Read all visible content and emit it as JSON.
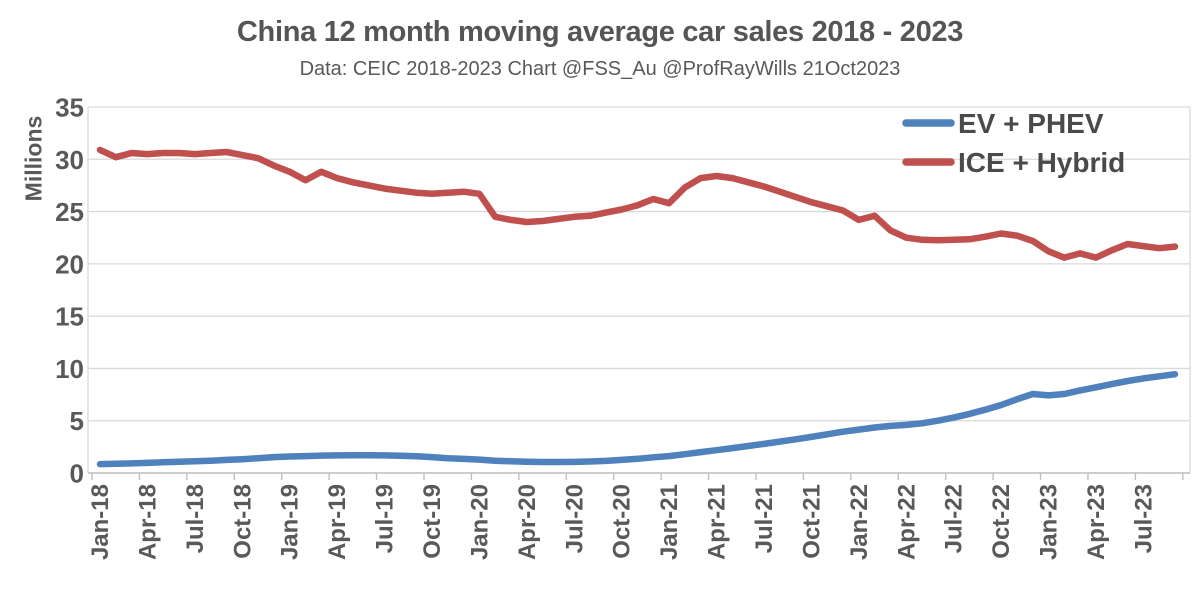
{
  "chart_data": {
    "type": "line",
    "title": "China 12 month moving average car sales 2018 - 2023",
    "subtitle": "Data: CEIC 2018-2023  Chart @FSS_Au @ProfRayWills 21Oct2023",
    "ylabel": "Millions",
    "xlabel": "",
    "ylim": [
      0,
      35
    ],
    "y_tick_step": 5,
    "y_tick_labels": [
      "0",
      "5",
      "10",
      "15",
      "20",
      "25",
      "30",
      "35"
    ],
    "grid": "horizontal",
    "legend_position": "top-right",
    "x": [
      "Jan-18",
      "Feb-18",
      "Mar-18",
      "Apr-18",
      "May-18",
      "Jun-18",
      "Jul-18",
      "Aug-18",
      "Sep-18",
      "Oct-18",
      "Nov-18",
      "Dec-18",
      "Jan-19",
      "Feb-19",
      "Mar-19",
      "Apr-19",
      "May-19",
      "Jun-19",
      "Jul-19",
      "Aug-19",
      "Sep-19",
      "Oct-19",
      "Nov-19",
      "Dec-19",
      "Jan-20",
      "Feb-20",
      "Mar-20",
      "Apr-20",
      "May-20",
      "Jun-20",
      "Jul-20",
      "Aug-20",
      "Sep-20",
      "Oct-20",
      "Nov-20",
      "Dec-20",
      "Jan-21",
      "Feb-21",
      "Mar-21",
      "Apr-21",
      "May-21",
      "Jun-21",
      "Jul-21",
      "Aug-21",
      "Sep-21",
      "Oct-21",
      "Nov-21",
      "Dec-21",
      "Jan-22",
      "Feb-22",
      "Mar-22",
      "Apr-22",
      "May-22",
      "Jun-22",
      "Jul-22",
      "Aug-22",
      "Sep-22",
      "Oct-22",
      "Nov-22",
      "Dec-22",
      "Jan-23",
      "Feb-23",
      "Mar-23",
      "Apr-23",
      "May-23",
      "Jun-23",
      "Jul-23",
      "Aug-23",
      "Sep-23"
    ],
    "x_tick_labels": [
      "Jan-18",
      "Apr-18",
      "Jul-18",
      "Oct-18",
      "Jan-19",
      "Apr-19",
      "Jul-19",
      "Oct-19",
      "Jan-20",
      "Apr-20",
      "Jul-20",
      "Oct-20",
      "Jan-21",
      "Apr-21",
      "Jul-21",
      "Oct-21",
      "Jan-22",
      "Apr-22",
      "Jul-22",
      "Oct-22",
      "Jan-23",
      "Apr-23",
      "Jul-23"
    ],
    "series": [
      {
        "name": "EV + PHEV",
        "color": "#4F81BD",
        "values": [
          0.85,
          0.88,
          0.92,
          0.97,
          1.02,
          1.08,
          1.13,
          1.18,
          1.25,
          1.32,
          1.42,
          1.52,
          1.58,
          1.62,
          1.66,
          1.68,
          1.7,
          1.7,
          1.68,
          1.65,
          1.6,
          1.52,
          1.42,
          1.35,
          1.28,
          1.18,
          1.12,
          1.08,
          1.05,
          1.05,
          1.06,
          1.1,
          1.16,
          1.25,
          1.36,
          1.5,
          1.62,
          1.8,
          2.0,
          2.18,
          2.38,
          2.58,
          2.78,
          3.0,
          3.22,
          3.45,
          3.7,
          3.95,
          4.15,
          4.35,
          4.5,
          4.6,
          4.75,
          5.0,
          5.3,
          5.65,
          6.05,
          6.5,
          7.05,
          7.55,
          7.42,
          7.55,
          7.9,
          8.2,
          8.5,
          8.8,
          9.05,
          9.25,
          9.45
        ]
      },
      {
        "name": "ICE + Hybrid",
        "color": "#C0504D",
        "values": [
          30.9,
          30.2,
          30.6,
          30.5,
          30.6,
          30.6,
          30.5,
          30.6,
          30.7,
          30.4,
          30.1,
          29.4,
          28.8,
          28.0,
          28.8,
          28.2,
          27.8,
          27.5,
          27.2,
          27.0,
          26.8,
          26.7,
          26.8,
          26.9,
          26.7,
          24.5,
          24.2,
          24.0,
          24.1,
          24.3,
          24.5,
          24.6,
          24.9,
          25.2,
          25.6,
          26.2,
          25.8,
          27.3,
          28.2,
          28.4,
          28.2,
          27.8,
          27.4,
          26.9,
          26.4,
          25.9,
          25.5,
          25.1,
          24.2,
          24.6,
          23.2,
          22.5,
          22.3,
          22.25,
          22.3,
          22.35,
          22.6,
          22.9,
          22.7,
          22.2,
          21.2,
          20.6,
          21.0,
          20.6,
          21.3,
          21.9,
          21.7,
          21.5,
          21.65
        ]
      }
    ]
  },
  "colors": {
    "background": "#FFFFFF",
    "gridline": "#D9D9D9",
    "axis": "#BFBFBF",
    "tick_text": "#595959",
    "title_text": "#555555",
    "legend_text": "#4A4A4A"
  }
}
